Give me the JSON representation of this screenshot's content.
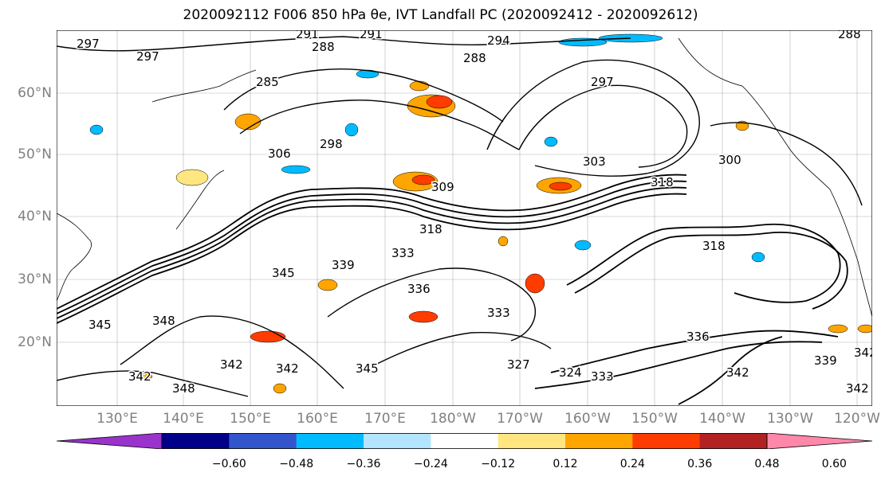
{
  "title": "2020092112 F006 850 hPa θe, IVT Landfall PC (2020092412 - 2020092612)",
  "latitude_labels": [
    "60°N",
    "50°N",
    "40°N",
    "30°N",
    "20°N"
  ],
  "longitude_labels": [
    "130°E",
    "140°E",
    "150°E",
    "160°E",
    "170°E",
    "180°W",
    "170°W",
    "160°W",
    "150°W",
    "140°W",
    "130°W",
    "120°W"
  ],
  "contour_labels": [
    "297",
    "297",
    "291",
    "291",
    "288",
    "294",
    "285",
    "288",
    "297",
    "288",
    "306",
    "298",
    "309",
    "303",
    "300",
    "318",
    "318",
    "318",
    "339",
    "345",
    "333",
    "336",
    "333",
    "345",
    "348",
    "342",
    "348",
    "342",
    "342",
    "345",
    "327",
    "324",
    "333",
    "336",
    "342",
    "339",
    "342",
    "342"
  ],
  "colorbar": {
    "tick_labels": [
      "−0.60",
      "−0.48",
      "−0.36",
      "−0.24",
      "−0.12",
      "0.12",
      "0.24",
      "0.36",
      "0.48",
      "0.60"
    ],
    "colors": [
      "#9933cc",
      "#000088",
      "#3355cc",
      "#00bbff",
      "#b3e5ff",
      "#ffffff",
      "#ffe680",
      "#ffa500",
      "#ff3c00",
      "#b22222",
      "#ff88aa"
    ]
  },
  "colors": {
    "contour": "#000000",
    "gridline": "#808080",
    "coastline": "#000000",
    "axis_label": "#808080"
  }
}
